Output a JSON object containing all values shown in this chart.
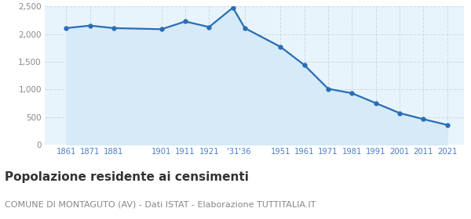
{
  "years": [
    1861,
    1871,
    1881,
    1901,
    1911,
    1921,
    1931,
    1936,
    1951,
    1961,
    1971,
    1981,
    1991,
    2001,
    2011,
    2021
  ],
  "population": [
    2110,
    2155,
    2110,
    2090,
    2230,
    2130,
    2480,
    2110,
    1770,
    1440,
    1010,
    930,
    750,
    570,
    460,
    355
  ],
  "line_color": "#2a6db5",
  "fill_color": "#d6eaf8",
  "bg_color": "#e8f4fb",
  "grid_color": "#c8dcea",
  "title": "Popolazione residente ai censimenti",
  "subtitle": "COMUNE DI MONTAGUTO (AV) - Dati ISTAT - Elaborazione TUTTITALIA.IT",
  "ylim": [
    0,
    2500
  ],
  "yticks": [
    0,
    500,
    1000,
    1500,
    2000,
    2500
  ],
  "xlim_left": 1852,
  "xlim_right": 2028,
  "title_fontsize": 11,
  "subtitle_fontsize": 8,
  "tick_label_color": "#4a7ec7",
  "ytick_label_color": "#888888"
}
